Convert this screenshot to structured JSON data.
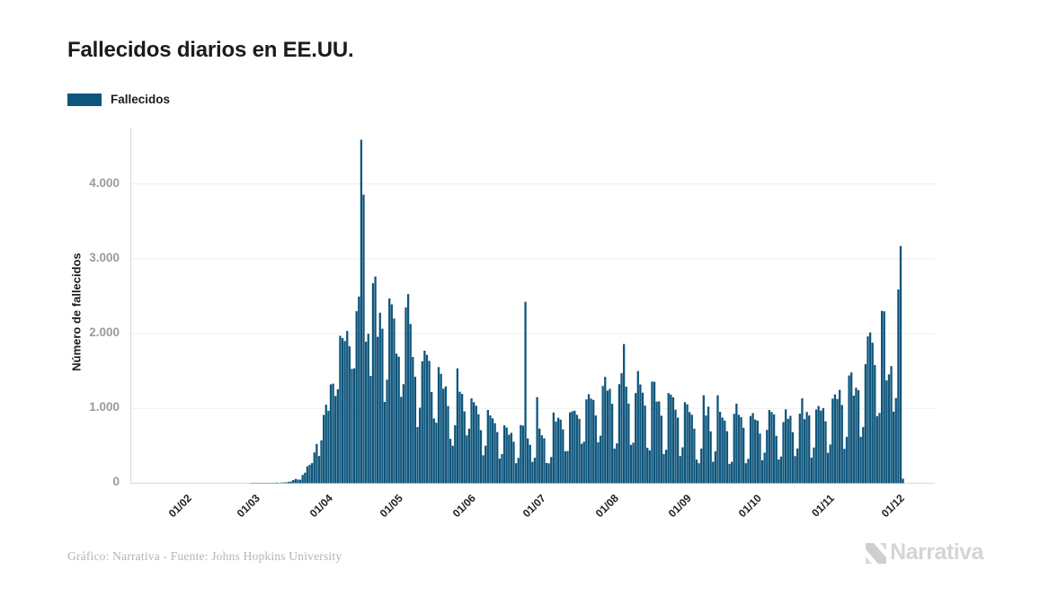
{
  "title": "Fallecidos diarios en EE.UU.",
  "legend": {
    "label": "Fallecidos"
  },
  "y_axis": {
    "title": "Número de fallecidos",
    "ticks": [
      "0",
      "1.000",
      "2.000",
      "3.000",
      "4.000"
    ]
  },
  "x_axis": {
    "ticks": [
      "01/02",
      "01/03",
      "01/04",
      "01/05",
      "01/06",
      "01/07",
      "01/08",
      "01/09",
      "01/10",
      "01/11",
      "01/12"
    ]
  },
  "footer": {
    "credit": "Gráfico: Narrativa - Fuente: Johns Hopkins University"
  },
  "brand": {
    "name": "Narrativa",
    "logo_icon": "narrativa-n-mark"
  },
  "colors": {
    "bar": "#0f567c",
    "gridline": "#ededed",
    "axis_line": "#d8d8d8",
    "y_tick_text": "#9b9b9b",
    "x_tick_text": "#1f1f1f",
    "title_text": "#1b1b1b",
    "credit_text": "#b5b5b5",
    "brand_text": "#d5d5d5"
  },
  "chart_data": {
    "type": "bar",
    "title": "Fallecidos diarios en EE.UU.",
    "series_name": "Fallecidos",
    "ylabel": "Número de fallecidos",
    "ylim": [
      0,
      4600
    ],
    "y_gridlines": [
      0,
      1000,
      2000,
      3000,
      4000
    ],
    "grid": true,
    "legend_position": "top-left",
    "x_unit": "day",
    "x_tick_format": "dd/mm",
    "x_tick_labels": [
      "01/02",
      "01/03",
      "01/04",
      "01/05",
      "01/06",
      "01/07",
      "01/08",
      "01/09",
      "01/10",
      "01/11",
      "01/12"
    ],
    "start_date": "2020-01-22",
    "values": [
      0,
      0,
      0,
      0,
      0,
      0,
      0,
      0,
      0,
      0,
      0,
      0,
      0,
      0,
      0,
      0,
      0,
      0,
      0,
      0,
      0,
      0,
      0,
      0,
      0,
      0,
      0,
      0,
      0,
      0,
      0,
      0,
      0,
      0,
      0,
      0,
      0,
      0,
      1,
      1,
      5,
      1,
      4,
      1,
      3,
      2,
      3,
      4,
      4,
      8,
      3,
      8,
      9,
      11,
      18,
      23,
      41,
      57,
      49,
      46,
      111,
      140,
      225,
      247,
      268,
      411,
      525,
      363,
      573,
      912,
      1049,
      968,
      1321,
      1331,
      1165,
      1255,
      1970,
      1940,
      1900,
      2035,
      1830,
      1528,
      1535,
      2299,
      2494,
      4591,
      3857,
      1891,
      1997,
      1433,
      2674,
      2763,
      1957,
      2279,
      2065,
      1087,
      1384,
      2470,
      2390,
      2201,
      1732,
      1691,
      1154,
      1324,
      2350,
      2528,
      2129,
      1687,
      1422,
      750,
      1008,
      1630,
      1772,
      1715,
      1635,
      1218,
      865,
      808,
      1552,
      1461,
      1263,
      1294,
      1032,
      592,
      500,
      774,
      1535,
      1223,
      1193,
      960,
      638,
      730,
      1134,
      1083,
      1036,
      921,
      709,
      373,
      501,
      979,
      906,
      867,
      802,
      683,
      329,
      389,
      773,
      745,
      648,
      673,
      554,
      267,
      339,
      777,
      769,
      2425,
      599,
      512,
      286,
      340,
      1150,
      730,
      640,
      600,
      270,
      265,
      350,
      945,
      824,
      875,
      850,
      720,
      427,
      430,
      946,
      961,
      969,
      914,
      860,
      527,
      555,
      1120,
      1189,
      1130,
      1113,
      905,
      548,
      635,
      1300,
      1420,
      1237,
      1261,
      1061,
      463,
      532,
      1324,
      1470,
      1860,
      1290,
      1064,
      513,
      541,
      1205,
      1499,
      1320,
      1210,
      1037,
      474,
      439,
      1358,
      1356,
      1090,
      1094,
      902,
      390,
      446,
      1205,
      1184,
      1148,
      983,
      876,
      363,
      479,
      1083,
      1054,
      950,
      914,
      729,
      316,
      267,
      463,
      1176,
      905,
      1024,
      693,
      286,
      426,
      1175,
      954,
      877,
      837,
      694,
      258,
      286,
      927,
      1064,
      914,
      884,
      741,
      267,
      326,
      898,
      937,
      851,
      837,
      663,
      307,
      408,
      712,
      979,
      951,
      918,
      633,
      316,
      356,
      817,
      987,
      860,
      900,
      682,
      362,
      464,
      930,
      1135,
      856,
      952,
      905,
      340,
      477,
      985,
      1031,
      971,
      1004,
      827,
      405,
      517,
      1130,
      1187,
      1126,
      1248,
      1045,
      459,
      620,
      1440,
      1480,
      1170,
      1276,
      1243,
      620,
      750,
      1591,
      1962,
      2015,
      1878,
      1579,
      897,
      939,
      2304,
      2297,
      1374,
      1455,
      1565,
      957,
      1138,
      2590,
      3170,
      60
    ]
  }
}
